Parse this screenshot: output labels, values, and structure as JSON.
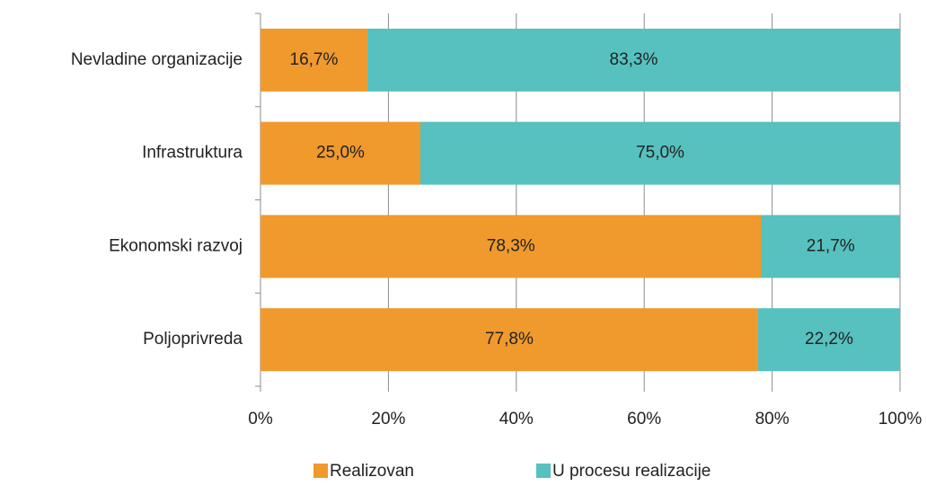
{
  "chart_data": {
    "type": "stacked-barh",
    "categories": [
      "Nevladine organizacije",
      "Infrastruktura",
      "Ekonomski razvoj",
      "Poljoprivreda"
    ],
    "series": [
      {
        "name": "Realizovan",
        "color": "#f0992d",
        "values": [
          16.7,
          25.0,
          78.3,
          77.8
        ],
        "value_labels": [
          "16,7%",
          "25,0%",
          "78,3%",
          "77,8%"
        ]
      },
      {
        "name": "U procesu realizacije",
        "color": "#56c1bf",
        "values": [
          83.3,
          75.0,
          21.7,
          22.2
        ],
        "value_labels": [
          "83,3%",
          "75,0%",
          "21,7%",
          "22,2%"
        ]
      }
    ],
    "xlim": [
      0,
      100
    ],
    "xticks": [
      {
        "value": 0,
        "label": "0%"
      },
      {
        "value": 20,
        "label": "20%"
      },
      {
        "value": 40,
        "label": "40%"
      },
      {
        "value": 60,
        "label": "60%"
      },
      {
        "value": 80,
        "label": "80%"
      },
      {
        "value": 100,
        "label": "100%"
      }
    ],
    "grid": true,
    "legend": "bottom"
  }
}
